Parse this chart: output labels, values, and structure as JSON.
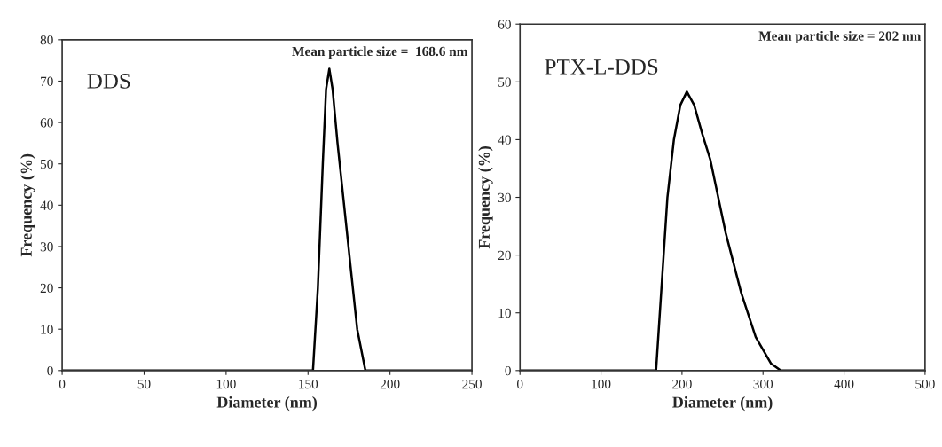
{
  "chart_data": [
    {
      "type": "line",
      "xlabel": "Diameter (nm)",
      "ylabel": "Frequency (%)",
      "annotations": [
        "DDS",
        "Mean particle size =  168.6 nm"
      ],
      "series": [
        {
          "color": "#000000",
          "x": [
            0,
            153,
            156,
            159,
            161,
            163,
            165,
            168,
            172,
            176,
            180,
            185,
            250
          ],
          "values": [
            0,
            0,
            20,
            50,
            68,
            73,
            68,
            55,
            40,
            25,
            10,
            0,
            0
          ]
        }
      ],
      "xlim": [
        0,
        250
      ],
      "xticks": [
        0,
        50,
        100,
        150,
        200,
        250
      ],
      "ylim": [
        0,
        80
      ],
      "yticks": [
        0,
        10,
        20,
        30,
        40,
        50,
        60,
        70,
        80
      ],
      "grid": false,
      "legend": false,
      "marker": "none",
      "line_style": "solid"
    },
    {
      "type": "line",
      "xlabel": "Diameter (nm)",
      "ylabel": "Frequency (%)",
      "annotations": [
        "PTX-L-DDS",
        "Mean particle size = 202 nm"
      ],
      "series": [
        {
          "color": "#000000",
          "x": [
            0,
            168,
            175,
            182,
            190,
            198,
            206,
            215,
            225,
            235,
            254,
            273,
            291,
            310,
            322,
            500
          ],
          "values": [
            0,
            0,
            15,
            30,
            40,
            46,
            48.3,
            46,
            41,
            36.5,
            23.8,
            13.5,
            5.8,
            1.2,
            0,
            0
          ]
        }
      ],
      "xlim": [
        0,
        500
      ],
      "xticks": [
        0,
        100,
        200,
        300,
        400,
        500
      ],
      "ylim": [
        0,
        60
      ],
      "yticks": [
        0,
        10,
        20,
        30,
        40,
        50,
        60
      ],
      "grid": false,
      "legend": false,
      "marker": "none",
      "line_style": "solid"
    }
  ]
}
